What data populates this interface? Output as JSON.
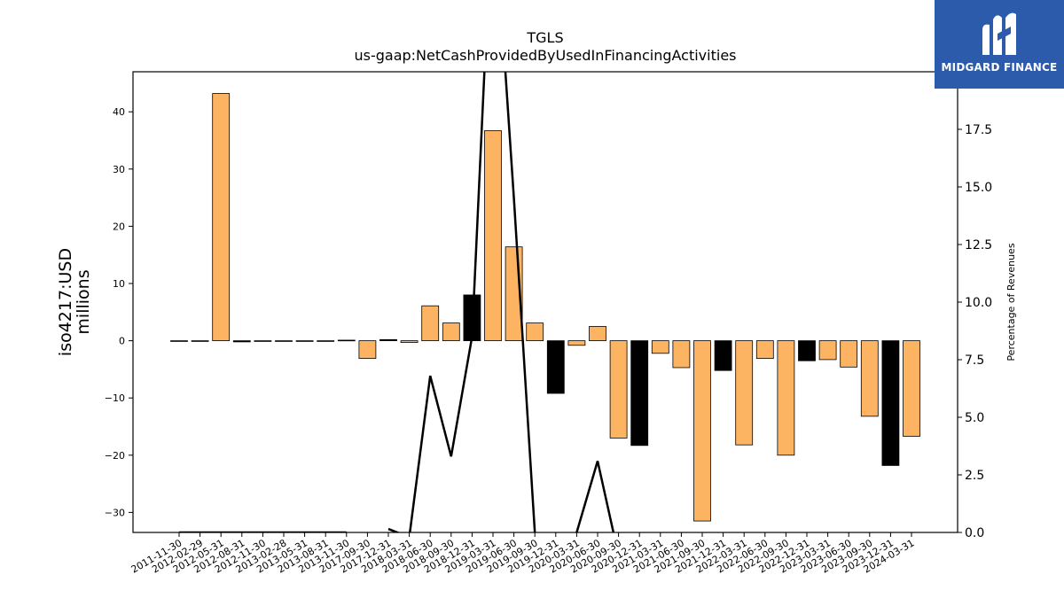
{
  "brand": {
    "name": "MIDGARD FINANCE",
    "bg_color": "#2d5bab",
    "logo_icon": "midgard-logo-icon"
  },
  "chart_data": {
    "type": "bar",
    "title": "TGLS",
    "subtitle": "us-gaap:NetCashProvidedByUsedInFinancingActivities",
    "ylabel": "iso4217:USD millions",
    "y2label": "Percentage of Revenues",
    "ylim": [
      -33.5,
      47
    ],
    "y2lim": [
      0,
      20
    ],
    "yticks": [
      -30,
      -20,
      -10,
      0,
      10,
      20,
      30,
      40
    ],
    "y2ticks": [
      0.0,
      2.5,
      5.0,
      7.5,
      10.0,
      12.5,
      15.0,
      17.5,
      20.0
    ],
    "grid": false,
    "colors": {
      "quarterly": "#fdb462",
      "annual": "#000000",
      "line": "#000000"
    },
    "categories": [
      "2011-11-30",
      "2012-02-29",
      "2012-05-31",
      "2012-08-31",
      "2012-11-30",
      "2013-02-28",
      "2013-05-31",
      "2013-08-31",
      "2013-11-30",
      "2017-09-30",
      "2017-12-31",
      "2018-03-31",
      "2018-06-30",
      "2018-09-30",
      "2018-12-31",
      "2019-03-31",
      "2019-06-30",
      "2019-09-30",
      "2019-12-31",
      "2020-03-31",
      "2020-06-30",
      "2020-09-30",
      "2020-12-31",
      "2021-03-31",
      "2021-06-30",
      "2021-09-30",
      "2021-12-31",
      "2022-03-31",
      "2022-06-30",
      "2022-09-30",
      "2022-12-31",
      "2023-03-31",
      "2023-06-30",
      "2023-09-30",
      "2023-12-31",
      "2024-03-31"
    ],
    "series": [
      {
        "type": "bar",
        "values": [
          0.0,
          0.0,
          43.2,
          -0.2,
          0.0,
          0.0,
          0.0,
          0.0,
          0.1,
          -3.1,
          0.2,
          -0.3,
          6.1,
          3.1,
          8.0,
          36.7,
          16.4,
          3.1,
          -9.2,
          -0.8,
          2.5,
          -17.0,
          -18.3,
          -2.2,
          -4.7,
          -31.5,
          -5.2,
          -18.2,
          -3.1,
          -20.0,
          -3.5,
          -3.3,
          -4.6,
          -13.2,
          -21.8,
          -16.7
        ],
        "is_annual": [
          false,
          false,
          false,
          true,
          false,
          false,
          false,
          false,
          true,
          false,
          true,
          false,
          false,
          false,
          true,
          false,
          false,
          false,
          true,
          false,
          false,
          false,
          true,
          false,
          false,
          false,
          true,
          false,
          false,
          false,
          true,
          false,
          false,
          false,
          true,
          false
        ]
      },
      {
        "type": "line",
        "axis": "right",
        "values": [
          0.0,
          0.0,
          0.0,
          0.0,
          0.0,
          0.0,
          0.0,
          0.0,
          0.0,
          null,
          0.15,
          -0.2,
          6.8,
          3.3,
          8.5,
          28,
          14.5,
          0.0,
          -4,
          0.0,
          3.1,
          -1,
          null,
          null,
          null,
          null,
          null,
          null,
          null,
          null,
          null,
          null,
          null,
          null,
          null,
          null
        ]
      }
    ]
  }
}
